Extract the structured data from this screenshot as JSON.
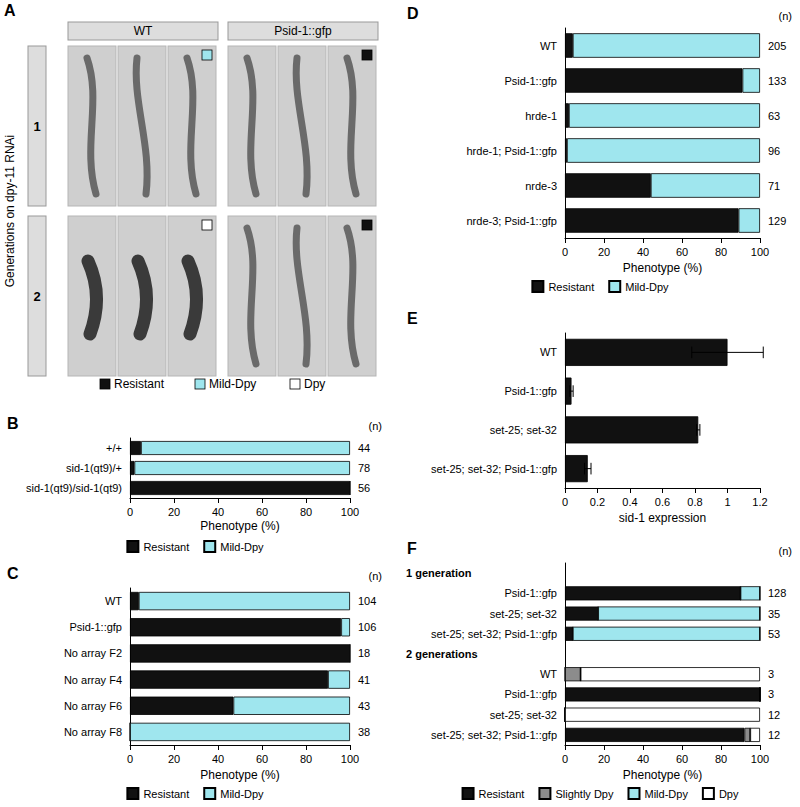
{
  "figure_a": {
    "title": "A",
    "columns": [
      "WT",
      "Psid-1::gfp"
    ],
    "rows": [
      "1",
      "2"
    ],
    "row_axis_label": "Generations on dpy-11 RNAi",
    "legend": [
      {
        "name": "Resistant",
        "color": "#111111"
      },
      {
        "name": "Mild-Dpy",
        "color": "#9fe6ee"
      },
      {
        "name": "Dpy",
        "color": "#ffffff"
      }
    ],
    "cells": [
      [
        "Mild-Dpy",
        "Resistant"
      ],
      [
        "Dpy",
        "Resistant"
      ]
    ]
  },
  "chart_data": [
    {
      "type": "bar",
      "title": "B",
      "orientation": "horizontal",
      "stacked": true,
      "categories": [
        "+/+",
        "sid-1(qt9)/+",
        "sid-1(qt9)/sid-1(qt9)"
      ],
      "series": [
        {
          "name": "Resistant",
          "color": "#111111",
          "values": [
            5,
            2,
            100
          ]
        },
        {
          "name": "Mild-Dpy",
          "color": "#9fe6ee",
          "values": [
            95,
            98,
            0
          ]
        }
      ],
      "n": [
        44,
        78,
        56
      ],
      "n_header": "(n)",
      "xlabel": "Phenotype (%)",
      "xlim": [
        0,
        100
      ],
      "xticks": [
        0,
        20,
        40,
        60,
        80,
        100
      ],
      "grid": false,
      "legend": "bottom"
    },
    {
      "type": "bar",
      "title": "C",
      "orientation": "horizontal",
      "stacked": true,
      "categories": [
        "WT",
        "Psid-1::gfp",
        "No array F2",
        "No array F4",
        "No array F6",
        "No array F8"
      ],
      "series": [
        {
          "name": "Resistant",
          "color": "#111111",
          "values": [
            4,
            96,
            100,
            90,
            47,
            0
          ]
        },
        {
          "name": "Mild-Dpy",
          "color": "#9fe6ee",
          "values": [
            96,
            4,
            0,
            10,
            53,
            100
          ]
        }
      ],
      "n": [
        104,
        106,
        18,
        41,
        43,
        38
      ],
      "n_header": "(n)",
      "xlabel": "Phenotype (%)",
      "xlim": [
        0,
        100
      ],
      "xticks": [
        0,
        20,
        40,
        60,
        80,
        100
      ],
      "grid": false,
      "legend": "bottom"
    },
    {
      "type": "bar",
      "title": "D",
      "orientation": "horizontal",
      "stacked": true,
      "categories": [
        "WT",
        "Psid-1::gfp",
        "hrde-1",
        "hrde-1; Psid-1::gfp",
        "nrde-3",
        "nrde-3; Psid-1::gfp"
      ],
      "series": [
        {
          "name": "Resistant",
          "color": "#111111",
          "values": [
            4,
            91,
            2,
            1,
            44,
            89
          ]
        },
        {
          "name": "Mild-Dpy",
          "color": "#9fe6ee",
          "values": [
            96,
            9,
            98,
            99,
            56,
            11
          ]
        }
      ],
      "n": [
        205,
        133,
        63,
        96,
        71,
        129
      ],
      "n_header": "(n)",
      "xlabel": "Phenotype (%)",
      "xlim": [
        0,
        100
      ],
      "xticks": [
        0,
        20,
        40,
        60,
        80,
        100
      ],
      "grid": false,
      "legend": "bottom"
    },
    {
      "type": "bar",
      "title": "E",
      "orientation": "horizontal",
      "categories": [
        "WT",
        "Psid-1::gfp",
        "set-25; set-32",
        "set-25; set-32; Psid-1::gfp"
      ],
      "values": [
        1,
        0.04,
        0.82,
        0.14
      ],
      "errors": [
        0.22,
        0.01,
        0.01,
        0.02
      ],
      "color": "#111111",
      "xlabel": "sid-1 expression",
      "xlim": [
        0,
        1.2
      ],
      "xticks": [
        0,
        0.2,
        0.4,
        0.6,
        0.8,
        1,
        1.2
      ],
      "grid": false
    },
    {
      "type": "bar",
      "title": "F",
      "orientation": "horizontal",
      "stacked": true,
      "categories": [
        null,
        "Psid-1::gfp",
        "set-25; set-32",
        "set-25; set-32; Psid-1::gfp",
        null,
        "WT",
        "Psid-1::gfp",
        "set-25; set-32",
        "set-25; set-32; Psid-1::gfp"
      ],
      "groups": [
        "1 generation",
        "2 generations"
      ],
      "series": [
        {
          "name": "Resistant",
          "color": "#111111",
          "values": [
            null,
            90,
            17,
            4,
            null,
            0,
            100,
            0,
            92
          ]
        },
        {
          "name": "Slightly Dpy",
          "color": "#8c8c8c",
          "values": [
            null,
            0,
            0,
            0,
            null,
            8,
            0,
            0,
            3
          ]
        },
        {
          "name": "Mild-Dpy",
          "color": "#9fe6ee",
          "values": [
            null,
            10,
            83,
            96,
            null,
            0,
            0,
            0,
            0
          ]
        },
        {
          "name": "Dpy",
          "color": "#ffffff",
          "values": [
            null,
            0,
            0,
            0,
            null,
            92,
            0,
            100,
            5
          ]
        }
      ],
      "n": [
        null,
        128,
        35,
        53,
        null,
        3,
        3,
        12,
        12
      ],
      "n_header": "(n)",
      "xlabel": "Phenotype (%)",
      "xlim": [
        0,
        100
      ],
      "xticks": [
        0,
        20,
        40,
        60,
        80,
        100
      ],
      "grid": false,
      "legend": "bottom"
    }
  ]
}
